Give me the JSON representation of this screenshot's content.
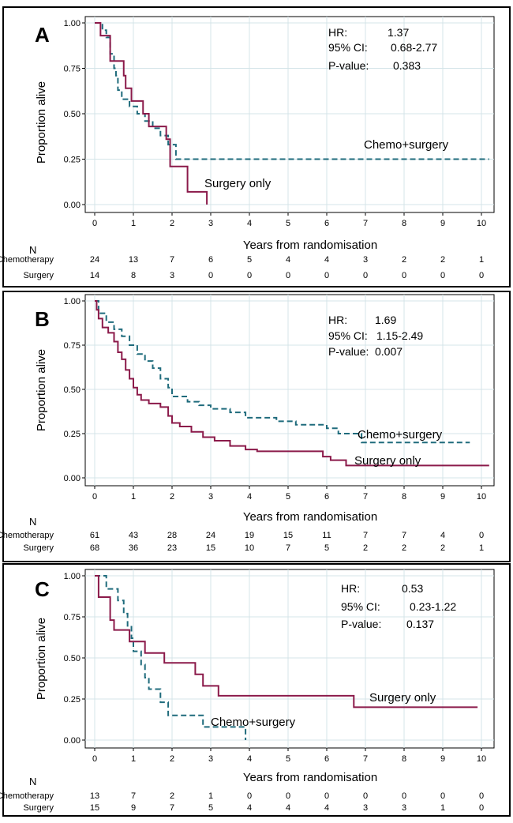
{
  "figure": {
    "xlabel": "Years from randomisation",
    "ylabel": "Proportion alive",
    "risk_header": "N",
    "colors": {
      "surgery": "#8b1a4a",
      "chemo": "#1f6b7c",
      "grid": "#d4e4e8",
      "frame": "#000000"
    }
  },
  "chart_data": [
    {
      "panel": "A",
      "type": "line",
      "xlabel": "Years from randomisation",
      "ylabel": "Proportion alive",
      "xlim": [
        0,
        10
      ],
      "ylim": [
        0,
        1
      ],
      "xticks": [
        "0",
        "1",
        "2",
        "3",
        "4",
        "5",
        "6",
        "7",
        "8",
        "9",
        "10"
      ],
      "yticks": [
        "0.00",
        "0.25",
        "0.50",
        "0.75",
        "1.00"
      ],
      "stats": {
        "hr_label": "HR:",
        "hr": "1.37",
        "ci_label": "95% CI:",
        "ci": "0.68-2.77",
        "p_label": "P-value:",
        "p": "0.383"
      },
      "series": [
        {
          "name": "Chemo+surgery",
          "style": "dashed",
          "steps": [
            [
              0,
              1.0
            ],
            [
              0.2,
              0.96
            ],
            [
              0.3,
              0.92
            ],
            [
              0.4,
              0.83
            ],
            [
              0.5,
              0.75
            ],
            [
              0.55,
              0.71
            ],
            [
              0.6,
              0.63
            ],
            [
              0.7,
              0.58
            ],
            [
              0.9,
              0.54
            ],
            [
              1.1,
              0.5
            ],
            [
              1.3,
              0.46
            ],
            [
              1.5,
              0.42
            ],
            [
              1.7,
              0.38
            ],
            [
              1.9,
              0.33
            ],
            [
              2.1,
              0.25
            ],
            [
              10.2,
              0.25
            ]
          ]
        },
        {
          "name": "Surgery only",
          "style": "solid",
          "steps": [
            [
              0,
              1.0
            ],
            [
              0.15,
              0.93
            ],
            [
              0.4,
              0.79
            ],
            [
              0.75,
              0.71
            ],
            [
              0.8,
              0.64
            ],
            [
              0.95,
              0.57
            ],
            [
              1.25,
              0.5
            ],
            [
              1.4,
              0.43
            ],
            [
              1.85,
              0.36
            ],
            [
              1.95,
              0.21
            ],
            [
              2.4,
              0.07
            ],
            [
              2.9,
              0.0
            ]
          ]
        }
      ],
      "labels": {
        "chemo": "Chemo+surgery",
        "surgery": "Surgery only"
      },
      "risk_table": {
        "rows": [
          {
            "label": "Chemotherapy",
            "values": [
              "24",
              "13",
              "7",
              "6",
              "5",
              "4",
              "4",
              "3",
              "2",
              "2",
              "1"
            ]
          },
          {
            "label": "Surgery",
            "values": [
              "14",
              "8",
              "3",
              "0",
              "0",
              "0",
              "0",
              "0",
              "0",
              "0",
              "0"
            ]
          }
        ]
      }
    },
    {
      "panel": "B",
      "type": "line",
      "xlabel": "Years from randomisation",
      "ylabel": "Proportion alive",
      "xlim": [
        0,
        10
      ],
      "ylim": [
        0,
        1
      ],
      "xticks": [
        "0",
        "1",
        "2",
        "3",
        "4",
        "5",
        "6",
        "7",
        "8",
        "9",
        "10"
      ],
      "yticks": [
        "0.00",
        "0.25",
        "0.50",
        "0.75",
        "1.00"
      ],
      "stats": {
        "hr_label": "HR:",
        "hr": "1.69",
        "ci_label": "95% CI:",
        "ci": "1.15-2.49",
        "p_label": "P-value:",
        "p": "0.007"
      },
      "series": [
        {
          "name": "Chemo+surgery",
          "style": "dashed",
          "steps": [
            [
              0,
              1.0
            ],
            [
              0.1,
              0.93
            ],
            [
              0.3,
              0.88
            ],
            [
              0.5,
              0.84
            ],
            [
              0.7,
              0.8
            ],
            [
              0.9,
              0.75
            ],
            [
              1.1,
              0.7
            ],
            [
              1.3,
              0.66
            ],
            [
              1.5,
              0.62
            ],
            [
              1.7,
              0.56
            ],
            [
              1.9,
              0.51
            ],
            [
              2.0,
              0.46
            ],
            [
              2.4,
              0.43
            ],
            [
              2.7,
              0.41
            ],
            [
              3.0,
              0.39
            ],
            [
              3.5,
              0.37
            ],
            [
              3.9,
              0.34
            ],
            [
              4.7,
              0.32
            ],
            [
              5.2,
              0.3
            ],
            [
              6.0,
              0.28
            ],
            [
              6.3,
              0.25
            ],
            [
              6.9,
              0.2
            ],
            [
              9.7,
              0.2
            ]
          ]
        },
        {
          "name": "Surgery only",
          "style": "solid",
          "steps": [
            [
              0,
              1.0
            ],
            [
              0.05,
              0.95
            ],
            [
              0.1,
              0.9
            ],
            [
              0.2,
              0.85
            ],
            [
              0.35,
              0.82
            ],
            [
              0.5,
              0.77
            ],
            [
              0.6,
              0.71
            ],
            [
              0.7,
              0.67
            ],
            [
              0.8,
              0.61
            ],
            [
              0.9,
              0.56
            ],
            [
              1.0,
              0.51
            ],
            [
              1.1,
              0.47
            ],
            [
              1.2,
              0.44
            ],
            [
              1.4,
              0.42
            ],
            [
              1.7,
              0.4
            ],
            [
              1.9,
              0.35
            ],
            [
              2.0,
              0.31
            ],
            [
              2.2,
              0.29
            ],
            [
              2.5,
              0.26
            ],
            [
              2.8,
              0.23
            ],
            [
              3.1,
              0.21
            ],
            [
              3.5,
              0.18
            ],
            [
              3.9,
              0.16
            ],
            [
              4.2,
              0.15
            ],
            [
              5.6,
              0.15
            ],
            [
              5.9,
              0.12
            ],
            [
              6.1,
              0.1
            ],
            [
              6.5,
              0.07
            ],
            [
              10.2,
              0.07
            ]
          ]
        }
      ],
      "labels": {
        "chemo": "Chemo+surgery",
        "surgery": "Surgery only"
      },
      "risk_table": {
        "rows": [
          {
            "label": "Chemotherapy",
            "values": [
              "61",
              "43",
              "28",
              "24",
              "19",
              "15",
              "11",
              "7",
              "7",
              "4",
              "0"
            ]
          },
          {
            "label": "Surgery",
            "values": [
              "68",
              "36",
              "23",
              "15",
              "10",
              "7",
              "5",
              "2",
              "2",
              "2",
              "1"
            ]
          }
        ]
      }
    },
    {
      "panel": "C",
      "type": "line",
      "xlabel": "Years from randomisation",
      "ylabel": "Proportion alive",
      "xlim": [
        0,
        10
      ],
      "ylim": [
        0,
        1
      ],
      "xticks": [
        "0",
        "1",
        "2",
        "3",
        "4",
        "5",
        "6",
        "7",
        "8",
        "9",
        "10"
      ],
      "yticks": [
        "0.00",
        "0.25",
        "0.50",
        "0.75",
        "1.00"
      ],
      "stats": {
        "hr_label": "HR:",
        "hr": "0.53",
        "ci_label": "95% CI:",
        "ci": "0.23-1.22",
        "p_label": "P-value:",
        "p": "0.137"
      },
      "series": [
        {
          "name": "Chemo+surgery",
          "style": "dashed",
          "steps": [
            [
              0,
              1.0
            ],
            [
              0.3,
              0.92
            ],
            [
              0.6,
              0.85
            ],
            [
              0.75,
              0.77
            ],
            [
              0.85,
              0.69
            ],
            [
              0.95,
              0.62
            ],
            [
              1.0,
              0.54
            ],
            [
              1.2,
              0.46
            ],
            [
              1.3,
              0.38
            ],
            [
              1.4,
              0.31
            ],
            [
              1.7,
              0.23
            ],
            [
              1.9,
              0.15
            ],
            [
              2.8,
              0.08
            ],
            [
              3.9,
              0.0
            ]
          ]
        },
        {
          "name": "Surgery only",
          "style": "solid",
          "steps": [
            [
              0,
              1.0
            ],
            [
              0.1,
              0.87
            ],
            [
              0.4,
              0.73
            ],
            [
              0.5,
              0.67
            ],
            [
              0.9,
              0.6
            ],
            [
              1.3,
              0.53
            ],
            [
              1.8,
              0.47
            ],
            [
              2.6,
              0.4
            ],
            [
              2.8,
              0.33
            ],
            [
              3.2,
              0.27
            ],
            [
              6.7,
              0.2
            ],
            [
              9.9,
              0.2
            ]
          ]
        }
      ],
      "labels": {
        "chemo": "Chemo+surgery",
        "surgery": "Surgery only"
      },
      "risk_table": {
        "rows": [
          {
            "label": "Chemotherapy",
            "values": [
              "13",
              "7",
              "2",
              "1",
              "0",
              "0",
              "0",
              "0",
              "0",
              "0",
              "0"
            ]
          },
          {
            "label": "Surgery",
            "values": [
              "15",
              "9",
              "7",
              "5",
              "4",
              "4",
              "4",
              "3",
              "3",
              "1",
              "0"
            ]
          }
        ]
      }
    }
  ]
}
